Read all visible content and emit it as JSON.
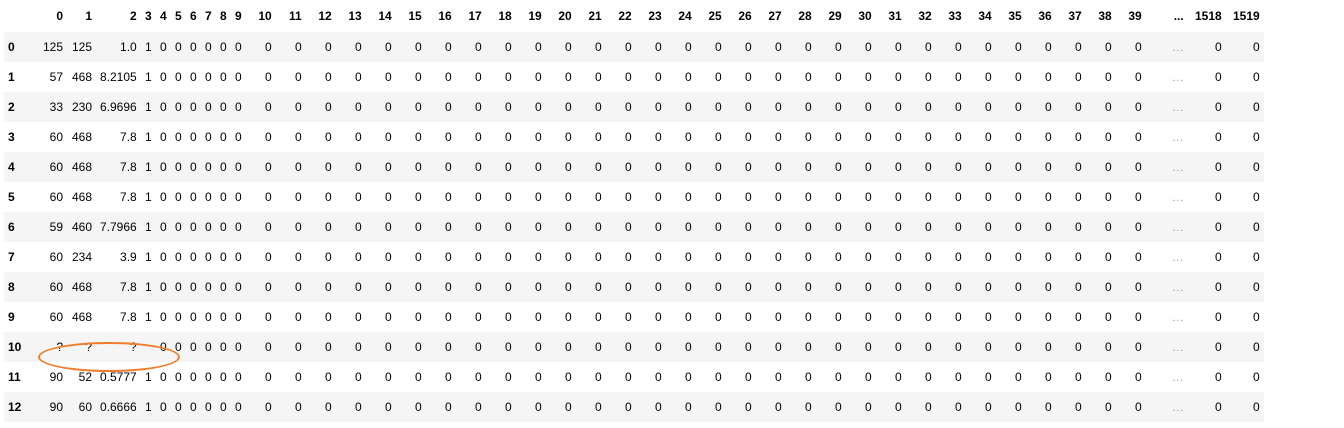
{
  "table": {
    "columns": [
      "0",
      "1",
      "2",
      "3",
      "4",
      "5",
      "6",
      "7",
      "8",
      "9",
      "10",
      "11",
      "12",
      "13",
      "14",
      "15",
      "16",
      "17",
      "18",
      "19",
      "20",
      "21",
      "22",
      "23",
      "24",
      "25",
      "26",
      "27",
      "28",
      "29",
      "30",
      "31",
      "32",
      "33",
      "34",
      "35",
      "36",
      "37",
      "38",
      "39",
      "...",
      "1518",
      "1519"
    ],
    "rows": [
      {
        "index": "0",
        "first": [
          "125",
          "125",
          "1.0",
          "1"
        ],
        "last": "0"
      },
      {
        "index": "1",
        "first": [
          "57",
          "468",
          "8.2105",
          "1"
        ],
        "last": "0"
      },
      {
        "index": "2",
        "first": [
          "33",
          "230",
          "6.9696",
          "1"
        ],
        "last": "0"
      },
      {
        "index": "3",
        "first": [
          "60",
          "468",
          "7.8",
          "1"
        ],
        "last": "0"
      },
      {
        "index": "4",
        "first": [
          "60",
          "468",
          "7.8",
          "1"
        ],
        "last": "0"
      },
      {
        "index": "5",
        "first": [
          "60",
          "468",
          "7.8",
          "1"
        ],
        "last": "0"
      },
      {
        "index": "6",
        "first": [
          "59",
          "460",
          "7.7966",
          "1"
        ],
        "last": "0"
      },
      {
        "index": "7",
        "first": [
          "60",
          "234",
          "3.9",
          "1"
        ],
        "last": "0"
      },
      {
        "index": "8",
        "first": [
          "60",
          "468",
          "7.8",
          "1"
        ],
        "last": "0"
      },
      {
        "index": "9",
        "first": [
          "60",
          "468",
          "7.8",
          "1"
        ],
        "last": "0"
      },
      {
        "index": "10",
        "first": [
          "?",
          "?",
          "?",
          ""
        ],
        "last": "0"
      },
      {
        "index": "11",
        "first": [
          "90",
          "52",
          "0.5777",
          "1"
        ],
        "last": "0"
      },
      {
        "index": "12",
        "first": [
          "90",
          "60",
          "0.6666",
          "1"
        ],
        "last": "0"
      }
    ],
    "fill_value": "0",
    "ellipsis_cell": "…"
  },
  "annotation": {
    "shape": "ellipse",
    "color": "#f07c2a",
    "target_row": "10",
    "target_columns": [
      "0",
      "1",
      "2"
    ]
  },
  "colors": {
    "row_stripe": "#f5f5f5",
    "row_plain": "#ffffff",
    "ellipsis_text": "#9e9e9e"
  }
}
